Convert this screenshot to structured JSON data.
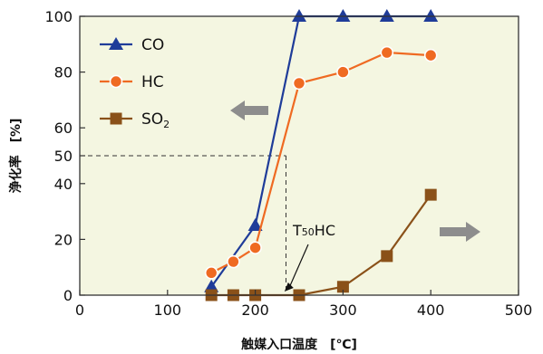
{
  "chart_data": {
    "type": "line",
    "xlabel": "触媒入口温度　[℃]",
    "ylabel": "浄化率　[%]",
    "xlim": [
      0,
      500
    ],
    "ylim": [
      0,
      100
    ],
    "xticks": [
      0,
      100,
      200,
      300,
      400,
      500
    ],
    "yticks": [
      0,
      20,
      40,
      50,
      60,
      80,
      100
    ],
    "grid": false,
    "legend_position": "top-left",
    "background": "#f4f6e1",
    "series": [
      {
        "name": "CO",
        "color": "#1f3c99",
        "marker": "triangle",
        "points": [
          [
            150,
            3
          ],
          [
            200,
            25
          ],
          [
            250,
            100
          ],
          [
            300,
            100
          ],
          [
            350,
            100
          ],
          [
            400,
            100
          ]
        ]
      },
      {
        "name": "HC",
        "color": "#ef6a22",
        "marker": "circle",
        "points": [
          [
            150,
            8
          ],
          [
            175,
            12
          ],
          [
            200,
            17
          ],
          [
            250,
            76
          ],
          [
            300,
            80
          ],
          [
            350,
            87
          ],
          [
            400,
            86
          ]
        ]
      },
      {
        "name": "SO",
        "name_subscript": "2",
        "color": "#8a5119",
        "marker": "square",
        "points": [
          [
            150,
            0
          ],
          [
            175,
            0
          ],
          [
            200,
            0
          ],
          [
            250,
            0
          ],
          [
            300,
            3
          ],
          [
            350,
            14
          ],
          [
            400,
            36
          ]
        ]
      }
    ],
    "reference": {
      "y": 50,
      "x": 225
    },
    "annotations": [
      {
        "label": "T",
        "subscript": "50",
        "suffix": "HC",
        "target": [
          225,
          0
        ]
      }
    ],
    "arrows": [
      {
        "direction": "left",
        "color": "#8d8d8d"
      },
      {
        "direction": "right",
        "color": "#8d8d8d"
      }
    ]
  }
}
